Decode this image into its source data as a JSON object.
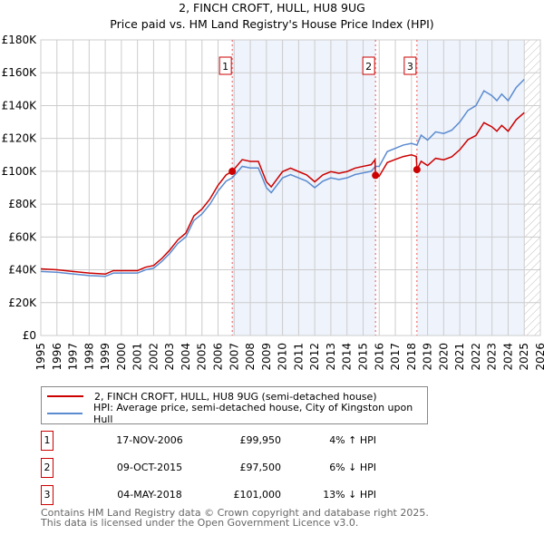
{
  "chart_data": {
    "type": "line",
    "title": "2, FINCH CROFT, HULL, HU8 9UG",
    "subtitle": "Price paid vs. HM Land Registry's House Price Index (HPI)",
    "xlim": [
      1995,
      2026
    ],
    "ylim": [
      0,
      180000
    ],
    "x_ticks": [
      "1995",
      "1996",
      "1997",
      "1998",
      "1999",
      "2000",
      "2001",
      "2002",
      "2003",
      "2004",
      "2005",
      "2006",
      "2007",
      "2008",
      "2009",
      "2010",
      "2011",
      "2012",
      "2013",
      "2014",
      "2015",
      "2016",
      "2017",
      "2018",
      "2019",
      "2020",
      "2021",
      "2022",
      "2023",
      "2024",
      "2025",
      "2026"
    ],
    "y_ticks": [
      {
        "v": 0,
        "label": "£0"
      },
      {
        "v": 20000,
        "label": "£20K"
      },
      {
        "v": 40000,
        "label": "£40K"
      },
      {
        "v": 60000,
        "label": "£60K"
      },
      {
        "v": 80000,
        "label": "£80K"
      },
      {
        "v": 100000,
        "label": "£100K"
      },
      {
        "v": 120000,
        "label": "£120K"
      },
      {
        "v": 140000,
        "label": "£140K"
      },
      {
        "v": 160000,
        "label": "£160K"
      },
      {
        "v": 180000,
        "label": "£180K"
      }
    ],
    "grid": true,
    "series": [
      {
        "name": "2, FINCH CROFT, HULL, HU8 9UG (semi-detached house)",
        "color": "#cc0000",
        "points": [
          [
            1995,
            40600
          ],
          [
            1996,
            40000
          ],
          [
            1997,
            39000
          ],
          [
            1998,
            38000
          ],
          [
            1999,
            37400
          ],
          [
            1999.5,
            39500
          ],
          [
            2000,
            39500
          ],
          [
            2001,
            39500
          ],
          [
            2001.5,
            41600
          ],
          [
            2002,
            42600
          ],
          [
            2002.5,
            46800
          ],
          [
            2003,
            52000
          ],
          [
            2003.5,
            58200
          ],
          [
            2004,
            62400
          ],
          [
            2004.5,
            72800
          ],
          [
            2005,
            77000
          ],
          [
            2005.5,
            83200
          ],
          [
            2006,
            91500
          ],
          [
            2006.5,
            97800
          ],
          [
            2006.88,
            99950
          ],
          [
            2007.5,
            107100
          ],
          [
            2008,
            106000
          ],
          [
            2008.5,
            106000
          ],
          [
            2009,
            93600
          ],
          [
            2009.3,
            90500
          ],
          [
            2010,
            99800
          ],
          [
            2010.5,
            101900
          ],
          [
            2011,
            99800
          ],
          [
            2011.5,
            97800
          ],
          [
            2012,
            93600
          ],
          [
            2012.5,
            97800
          ],
          [
            2013,
            99800
          ],
          [
            2013.5,
            98800
          ],
          [
            2014,
            99800
          ],
          [
            2014.5,
            101900
          ],
          [
            2015,
            103000
          ],
          [
            2015.5,
            104000
          ],
          [
            2015.74,
            107000
          ],
          [
            2015.77,
            97500
          ],
          [
            2016,
            97000
          ],
          [
            2016.5,
            105300
          ],
          [
            2017,
            107200
          ],
          [
            2017.5,
            109000
          ],
          [
            2018,
            110000
          ],
          [
            2018.3,
            109000
          ],
          [
            2018.34,
            101000
          ],
          [
            2018.6,
            106100
          ],
          [
            2019,
            103500
          ],
          [
            2019.5,
            107900
          ],
          [
            2020,
            107000
          ],
          [
            2020.5,
            108800
          ],
          [
            2021,
            113100
          ],
          [
            2021.5,
            119200
          ],
          [
            2022,
            121800
          ],
          [
            2022.5,
            129600
          ],
          [
            2023,
            127000
          ],
          [
            2023.3,
            124400
          ],
          [
            2023.6,
            127900
          ],
          [
            2024,
            124400
          ],
          [
            2024.5,
            131400
          ],
          [
            2025,
            135700
          ]
        ]
      },
      {
        "name": "HPI: Average price, semi-detached house, City of Kingston upon Hull",
        "color": "#5b8bd0",
        "points": [
          [
            1995,
            39000
          ],
          [
            1996,
            38500
          ],
          [
            1997,
            37500
          ],
          [
            1998,
            36500
          ],
          [
            1999,
            36000
          ],
          [
            1999.5,
            38000
          ],
          [
            2000,
            38000
          ],
          [
            2001,
            38000
          ],
          [
            2001.5,
            40000
          ],
          [
            2002,
            41000
          ],
          [
            2002.5,
            45000
          ],
          [
            2003,
            50000
          ],
          [
            2003.5,
            56000
          ],
          [
            2004,
            60000
          ],
          [
            2004.5,
            70000
          ],
          [
            2005,
            74000
          ],
          [
            2005.5,
            80000
          ],
          [
            2006,
            88000
          ],
          [
            2006.5,
            94000
          ],
          [
            2006.88,
            96000
          ],
          [
            2007.5,
            103000
          ],
          [
            2008,
            102000
          ],
          [
            2008.5,
            102000
          ],
          [
            2009,
            90000
          ],
          [
            2009.3,
            87000
          ],
          [
            2010,
            96000
          ],
          [
            2010.5,
            98000
          ],
          [
            2011,
            96000
          ],
          [
            2011.5,
            94000
          ],
          [
            2012,
            90000
          ],
          [
            2012.5,
            94000
          ],
          [
            2013,
            96000
          ],
          [
            2013.5,
            95000
          ],
          [
            2014,
            96000
          ],
          [
            2014.5,
            98000
          ],
          [
            2015,
            99000
          ],
          [
            2015.5,
            100000
          ],
          [
            2015.77,
            103000
          ],
          [
            2016,
            103000
          ],
          [
            2016.5,
            112000
          ],
          [
            2017,
            114000
          ],
          [
            2017.5,
            116000
          ],
          [
            2018,
            117000
          ],
          [
            2018.34,
            116000
          ],
          [
            2018.6,
            122000
          ],
          [
            2019,
            119000
          ],
          [
            2019.5,
            124000
          ],
          [
            2020,
            123000
          ],
          [
            2020.5,
            125000
          ],
          [
            2021,
            130000
          ],
          [
            2021.5,
            137000
          ],
          [
            2022,
            140000
          ],
          [
            2022.5,
            149000
          ],
          [
            2023,
            146000
          ],
          [
            2023.3,
            143000
          ],
          [
            2023.6,
            147000
          ],
          [
            2024,
            143000
          ],
          [
            2024.5,
            151000
          ],
          [
            2025,
            156000
          ]
        ]
      }
    ],
    "sales": [
      {
        "label": "1",
        "x": 2006.88,
        "y": 99950
      },
      {
        "label": "2",
        "x": 2015.77,
        "y": 97500
      },
      {
        "label": "3",
        "x": 2018.34,
        "y": 101000
      }
    ],
    "shaded_ranges": [
      [
        2006.88,
        2015.77
      ],
      [
        2018.34,
        2025.0
      ]
    ],
    "hatched_range": [
      2025.0,
      2026
    ],
    "legend_placement": "below"
  },
  "legend": [
    {
      "label": "2, FINCH CROFT, HULL, HU8 9UG (semi-detached house)",
      "color": "#cc0000"
    },
    {
      "label": "HPI: Average price, semi-detached house, City of Kingston upon Hull",
      "color": "#5b8bd0"
    }
  ],
  "transactions": [
    {
      "num": "1",
      "date": "17-NOV-2006",
      "price": "£99,950",
      "hpi": "4% ↑ HPI"
    },
    {
      "num": "2",
      "date": "09-OCT-2015",
      "price": "£97,500",
      "hpi": "6% ↓ HPI"
    },
    {
      "num": "3",
      "date": "04-MAY-2018",
      "price": "£101,000",
      "hpi": "13% ↓ HPI"
    }
  ],
  "footer": {
    "line1": "Contains HM Land Registry data © Crown copyright and database right 2025.",
    "line2": "This data is licensed under the Open Government Licence v3.0."
  }
}
